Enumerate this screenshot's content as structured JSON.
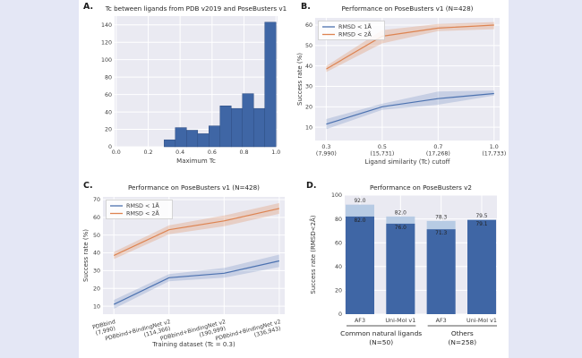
{
  "page": {
    "background": "#e4e7f5",
    "card_background": "#ffffff"
  },
  "panels": [
    {
      "label": "A."
    },
    {
      "label": "B."
    },
    {
      "label": "C."
    },
    {
      "label": "D."
    }
  ],
  "colors": {
    "blue": "#4c72b0",
    "orange": "#dd8452",
    "bar_dark": "#3f66a5",
    "bar_light": "#b7cbe4",
    "plot_bg": "#eaeaf2",
    "grid": "#ffffff",
    "text": "#3a3a3a",
    "band_blue": "rgba(76,114,176,0.22)",
    "band_orange": "rgba(221,132,82,0.28)"
  },
  "chart_data": [
    {
      "id": "A",
      "type": "histogram",
      "title": "Tc between ligands from PDB v2019 and PoseBusters v1",
      "xlabel": "Maximum Tc",
      "ylabel": "",
      "xlim": [
        -0.01,
        1.01
      ],
      "ylim": [
        0,
        150
      ],
      "yticks": [
        0,
        20,
        40,
        60,
        80,
        100,
        120,
        140
      ],
      "xticks": [
        0.0,
        0.2,
        0.4,
        0.6,
        0.8,
        1.0
      ],
      "xtick_labels": [
        "0.0",
        "0.2",
        "0.4",
        "0.6",
        "0.8",
        "1.0"
      ],
      "bin_start": 0.3,
      "bin_width": 0.07,
      "values": [
        8,
        22,
        19,
        15,
        24,
        47,
        44,
        61,
        44,
        143
      ]
    },
    {
      "id": "B",
      "type": "line",
      "title": "Performance on PoseBusters v1 (N=428)",
      "xlabel": "Ligand similarity (Tc) cutoff",
      "ylabel": "Success rate (%)",
      "ylim": [
        3.5,
        63.5
      ],
      "yticks": [
        10,
        20,
        30,
        40,
        50,
        60
      ],
      "categories": [
        [
          "0.3",
          "(7,990)"
        ],
        [
          "0.5",
          "(15,731)"
        ],
        [
          "0.7",
          "(17,268)"
        ],
        [
          "1.0",
          "(17,733)"
        ]
      ],
      "rotated_labels": false,
      "legend": [
        "RMSD < 1Å",
        "RMSD < 2Å"
      ],
      "series": [
        {
          "name": "RMSD < 1Å",
          "color_key": "blue",
          "values": [
            11.5,
            20,
            24,
            26.5
          ],
          "band_low": [
            9,
            18.5,
            21,
            25.5
          ],
          "band_high": [
            14,
            21.5,
            27.5,
            28
          ]
        },
        {
          "name": "RMSD < 2Å",
          "color_key": "orange",
          "values": [
            38.5,
            54.5,
            58.5,
            60
          ],
          "band_low": [
            37,
            51,
            57,
            58
          ],
          "band_high": [
            40,
            57.5,
            60.5,
            61.5
          ]
        }
      ]
    },
    {
      "id": "C",
      "type": "line",
      "title": "Performance on PoseBusters v1 (N=428)",
      "xlabel": "Training dataset (Tc = 0.3)",
      "ylabel": "Success rate (%)",
      "ylim": [
        5.5,
        71.5
      ],
      "yticks": [
        10,
        20,
        30,
        40,
        50,
        60,
        70
      ],
      "categories": [
        [
          "PDBbind",
          "(7,990)"
        ],
        [
          "PDBbind+BindingNet v2",
          "(114,366)"
        ],
        [
          "PDBbind+BindingNet v2",
          "(190,999)"
        ],
        [
          "PDBbind+BindingNet v2",
          "(336,943)"
        ]
      ],
      "rotated_labels": true,
      "legend": [
        "RMSD < 1Å",
        "RMSD < 2Å"
      ],
      "series": [
        {
          "name": "RMSD < 1Å",
          "color_key": "blue",
          "values": [
            11,
            26,
            28.5,
            35.5
          ],
          "band_low": [
            8.5,
            24,
            26,
            32
          ],
          "band_high": [
            13.5,
            28,
            31.5,
            39
          ]
        },
        {
          "name": "RMSD < 2Å",
          "color_key": "orange",
          "values": [
            38.5,
            53,
            58,
            65
          ],
          "band_low": [
            36.5,
            50.5,
            55,
            62
          ],
          "band_high": [
            40.5,
            55.5,
            61,
            68
          ]
        }
      ]
    },
    {
      "id": "D",
      "type": "grouped-bar",
      "title": "Performance on PoseBusters v2",
      "ylabel": "Success rate (RMSD<2Å)",
      "ylim": [
        0,
        100
      ],
      "yticks": [
        0,
        20,
        40,
        60,
        80,
        100
      ],
      "bars": [
        {
          "tick": "AF3",
          "light_value": 92.0,
          "light_label": "92.0",
          "dark_value": 82.0,
          "dark_label": "82.0"
        },
        {
          "tick": "Uni-Mol v1",
          "light_value": 82.0,
          "light_label": "82.0",
          "dark_value": 76.0,
          "dark_label": "76.0"
        },
        {
          "tick": "AF3",
          "light_value": 78.3,
          "light_label": "78.3",
          "dark_value": 71.3,
          "dark_label": "71.3"
        },
        {
          "tick": "Uni-Mol v1",
          "light_value": 79.5,
          "light_label": "79.5",
          "dark_value": 79.1,
          "dark_label": "79.1"
        }
      ],
      "groups": [
        {
          "label": "Common natural ligands",
          "n": "(N=50)",
          "bars": [
            0,
            1
          ]
        },
        {
          "label": "Others",
          "n": "(N=258)",
          "bars": [
            2,
            3
          ]
        }
      ]
    }
  ]
}
